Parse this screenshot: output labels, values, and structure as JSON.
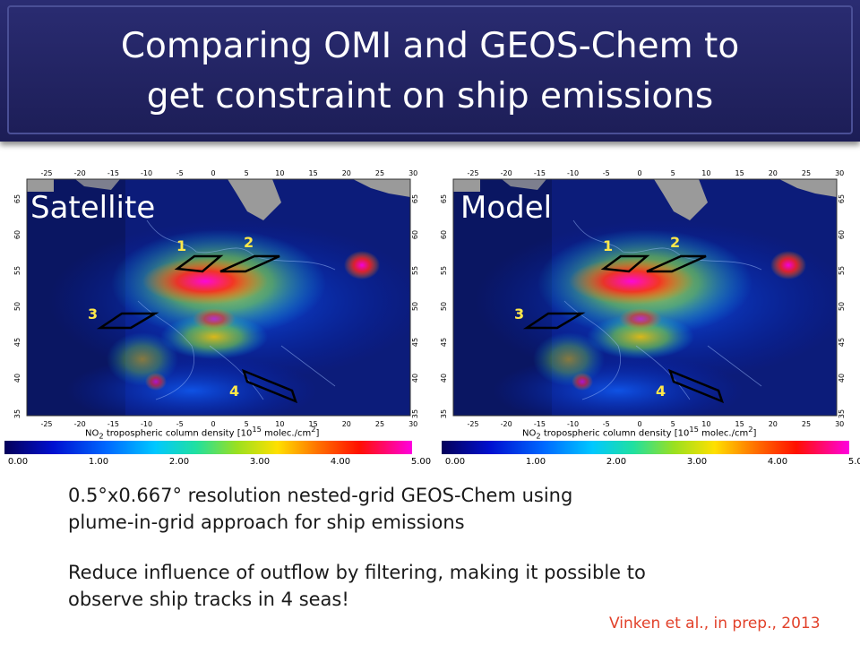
{
  "title": {
    "line1": "Comparing OMI and GEOS-Chem to",
    "line2": "get constraint on ship emissions"
  },
  "panels": [
    {
      "label": "Satellite",
      "regions": [
        "1",
        "2",
        "3",
        "4"
      ]
    },
    {
      "label": "Model",
      "regions": [
        "1",
        "2",
        "3",
        "4"
      ]
    }
  ],
  "map_axes": {
    "lon_ticks": [
      "-25",
      "-20",
      "-15",
      "-10",
      "-5",
      "0",
      "5",
      "10",
      "15",
      "20",
      "25",
      "30"
    ],
    "lat_ticks": [
      "65",
      "60",
      "55",
      "50",
      "45",
      "40",
      "35"
    ]
  },
  "colorbar": {
    "label_parts": [
      "NO",
      "2",
      " tropospheric column density [10",
      "15",
      " molec./cm",
      "2",
      "]"
    ],
    "ticks": [
      "0.00",
      "1.00",
      "2.00",
      "3.00",
      "4.00",
      "5.00"
    ]
  },
  "paragraphs": {
    "p1_line1": "0.5°x0.667° resolution nested-grid GEOS-Chem using",
    "p1_line2": "plume-in-grid approach for ship emissions",
    "p2_line1": "Reduce influence of outflow by filtering, making it possible to",
    "p2_line2": "observe ship tracks in 4 seas!"
  },
  "citation": "Vinken et al., in prep., 2013",
  "colors": {
    "title_bg": "#1c1d56",
    "citation": "#e2412a",
    "region_box": "#000000",
    "region_num": "#ffe84a"
  }
}
